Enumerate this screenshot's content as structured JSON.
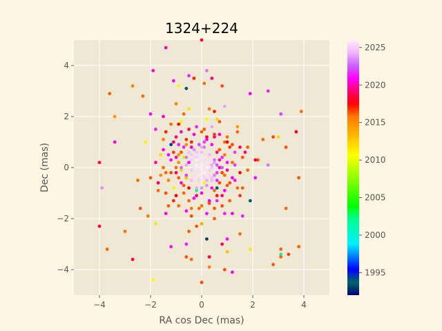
{
  "chart_data": {
    "type": "scatter",
    "title": "1324+224",
    "xlabel": "RA cos Dec (mas)",
    "ylabel": "Dec (mas)",
    "xlim": [
      -5,
      5
    ],
    "ylim": [
      -5,
      5
    ],
    "x_ticks": [
      -4,
      -2,
      0,
      2,
      4
    ],
    "y_ticks": [
      -4,
      -2,
      0,
      2,
      4
    ],
    "grid": true,
    "colorbar": {
      "label": "",
      "range": [
        1992,
        2026
      ],
      "ticks": [
        1995,
        2000,
        2005,
        2010,
        2015,
        2020,
        2025
      ],
      "colormap": "gist_ncar"
    },
    "colors": {
      "background": "#fdf6e3",
      "plot_area": "#eee8d5",
      "grid": "#ffffff"
    },
    "points": [
      [
        0.0,
        5.0,
        2018.5
      ],
      [
        -1.4,
        4.7,
        2020.0
      ],
      [
        -0.5,
        3.6,
        2021.5
      ],
      [
        0.2,
        3.8,
        2023.0
      ],
      [
        -2.7,
        3.2,
        2015.5
      ],
      [
        -2.3,
        2.8,
        2016.0
      ],
      [
        -3.6,
        2.9,
        2016.2
      ],
      [
        -1.9,
        3.8,
        2020.5
      ],
      [
        -0.3,
        3.5,
        2017.0
      ],
      [
        0.4,
        3.5,
        2019.5
      ],
      [
        0.8,
        3.2,
        2016.5
      ],
      [
        1.9,
        2.9,
        2020.8
      ],
      [
        2.6,
        3.0,
        2021.5
      ],
      [
        0.1,
        3.3,
        2016.0
      ],
      [
        -1.1,
        3.4,
        2021.0
      ],
      [
        -0.6,
        3.1,
        1993.5
      ],
      [
        -0.9,
        3.2,
        2011.0
      ],
      [
        -3.4,
        2.0,
        2014.5
      ],
      [
        -3.4,
        1.0,
        2020.5
      ],
      [
        -2.0,
        2.1,
        2021.0
      ],
      [
        -1.5,
        2.0,
        2020.3
      ],
      [
        -1.0,
        2.5,
        2015.3
      ],
      [
        -0.5,
        2.3,
        2011.5
      ],
      [
        0.5,
        2.2,
        2017.2
      ],
      [
        0.9,
        2.4,
        2024.0
      ],
      [
        3.9,
        2.2,
        2016.0
      ],
      [
        3.1,
        2.1,
        2022.0
      ],
      [
        -1.8,
        1.5,
        2021.3
      ],
      [
        -1.4,
        1.4,
        2017.0
      ],
      [
        -0.8,
        1.8,
        2011.0
      ],
      [
        0.2,
        1.9,
        2010.5
      ],
      [
        0.7,
        1.8,
        2016.3
      ],
      [
        1.4,
        1.6,
        2014.5
      ],
      [
        2.4,
        1.1,
        2016.0
      ],
      [
        2.8,
        1.2,
        2016.5
      ],
      [
        3.0,
        1.2,
        2012.0
      ],
      [
        3.7,
        1.4,
        2018.0
      ],
      [
        -1.1,
        1.0,
        2019.0
      ],
      [
        -0.6,
        0.9,
        2015.0
      ],
      [
        0.1,
        1.0,
        2022.0
      ],
      [
        0.5,
        1.2,
        2019.5
      ],
      [
        0.9,
        1.0,
        2016.0
      ],
      [
        1.5,
        0.8,
        2019.0
      ],
      [
        1.8,
        0.8,
        2016.2
      ],
      [
        3.3,
        0.8,
        2016.4
      ],
      [
        -2.5,
        -0.5,
        2016.0
      ],
      [
        -2.4,
        -1.6,
        2016.3
      ],
      [
        -2.1,
        -1.9,
        2015.8
      ],
      [
        -1.8,
        -2.2,
        2011.5
      ],
      [
        -3.0,
        -2.5,
        2016.0
      ],
      [
        -4.0,
        -2.3,
        2018.2
      ],
      [
        -3.7,
        -3.2,
        2016.1
      ],
      [
        -2.7,
        -3.6,
        2018.5
      ],
      [
        -1.9,
        -4.4,
        2011.0
      ],
      [
        -1.2,
        -3.1,
        2021.0
      ],
      [
        -0.6,
        -3.0,
        2021.3
      ],
      [
        -0.6,
        -3.5,
        2016.3
      ],
      [
        -0.4,
        -3.6,
        2016.0
      ],
      [
        0.0,
        -4.5,
        2016.5
      ],
      [
        0.3,
        -3.9,
        2015.2
      ],
      [
        0.9,
        -4.0,
        2016.4
      ],
      [
        1.2,
        -4.1,
        2021.0
      ],
      [
        1.0,
        -3.3,
        2013.0
      ],
      [
        0.8,
        -3.0,
        2019.0
      ],
      [
        0.2,
        -2.8,
        1993.0
      ],
      [
        0.3,
        -3.5,
        2018.8
      ],
      [
        1.9,
        -3.2,
        2011.5
      ],
      [
        2.8,
        -3.8,
        2016.3
      ],
      [
        3.1,
        -3.5,
        2016.0
      ],
      [
        3.1,
        -3.2,
        2016.2
      ],
      [
        3.4,
        -3.4,
        2016.6
      ],
      [
        3.8,
        -3.1,
        2016.1
      ],
      [
        3.1,
        -3.4,
        2001.5
      ],
      [
        3.3,
        -1.6,
        2016.0
      ],
      [
        1.9,
        -1.3,
        1994.0
      ],
      [
        1.5,
        -2.6,
        2016.0
      ],
      [
        1.6,
        -1.9,
        2021.3
      ],
      [
        -0.5,
        -2.5,
        2016.2
      ],
      [
        0.0,
        -2.2,
        2014.0
      ],
      [
        -4.0,
        0.2,
        2018.5
      ],
      [
        -3.9,
        -0.8,
        2023.5
      ],
      [
        -1.7,
        -0.9,
        2016.0
      ],
      [
        3.8,
        -0.4,
        2016.3
      ],
      [
        2.6,
        0.1,
        2023.0
      ],
      [
        2.1,
        0.3,
        2018.0
      ],
      [
        -1.4,
        -1.8,
        2020.5
      ],
      [
        1.0,
        -2.8,
        2021.0
      ],
      [
        -1.2,
        0.3,
        2021.0
      ],
      [
        -1.0,
        -0.2,
        2019.0
      ],
      [
        -0.9,
        0.5,
        2015.0
      ],
      [
        -0.8,
        -0.6,
        2020.5
      ],
      [
        -0.7,
        0.8,
        2021.5
      ],
      [
        -0.7,
        -1.0,
        2016.0
      ],
      [
        -0.6,
        0.1,
        2024.0
      ],
      [
        -0.6,
        -0.3,
        2022.0
      ],
      [
        -0.5,
        0.6,
        2024.5
      ],
      [
        -0.5,
        -0.8,
        2018.0
      ],
      [
        -0.4,
        0.3,
        2025.0
      ],
      [
        -0.4,
        -0.5,
        2024.5
      ],
      [
        -0.4,
        1.0,
        2017.0
      ],
      [
        -0.3,
        0.0,
        2025.5
      ],
      [
        -0.3,
        -1.2,
        2021.0
      ],
      [
        -0.3,
        0.7,
        2023.5
      ],
      [
        -0.2,
        0.4,
        2025.0
      ],
      [
        -0.2,
        -0.2,
        2025.5
      ],
      [
        -0.2,
        -0.8,
        2024.0
      ],
      [
        -0.1,
        0.1,
        2025.5
      ],
      [
        -0.1,
        0.9,
        2022.0
      ],
      [
        -0.1,
        -0.5,
        2025.0
      ],
      [
        0.0,
        0.3,
        2025.5
      ],
      [
        0.0,
        -0.1,
        2025.8
      ],
      [
        0.0,
        0.6,
        2024.5
      ],
      [
        0.0,
        -1.0,
        2020.5
      ],
      [
        0.1,
        0.0,
        2025.5
      ],
      [
        0.1,
        -0.4,
        2025.0
      ],
      [
        0.1,
        0.8,
        2023.0
      ],
      [
        0.2,
        0.2,
        2025.5
      ],
      [
        0.2,
        -0.7,
        2023.5
      ],
      [
        0.2,
        1.2,
        2018.5
      ],
      [
        0.3,
        -0.1,
        2025.0
      ],
      [
        0.3,
        0.5,
        2024.5
      ],
      [
        0.3,
        -1.4,
        2016.5
      ],
      [
        0.4,
        0.1,
        2024.0
      ],
      [
        0.4,
        -0.4,
        2024.5
      ],
      [
        0.4,
        0.9,
        2021.0
      ],
      [
        0.5,
        -0.9,
        2016.0
      ],
      [
        0.5,
        0.3,
        2023.0
      ],
      [
        0.6,
        -0.2,
        2022.0
      ],
      [
        0.6,
        0.6,
        2019.5
      ],
      [
        0.6,
        -1.3,
        2021.5
      ],
      [
        0.7,
        0.0,
        2020.0
      ],
      [
        0.7,
        -0.6,
        2016.5
      ],
      [
        0.8,
        0.4,
        2021.5
      ],
      [
        0.8,
        -1.1,
        2019.0
      ],
      [
        0.9,
        -0.3,
        2016.0
      ],
      [
        1.0,
        0.2,
        2021.0
      ],
      [
        1.0,
        -0.7,
        2016.3
      ],
      [
        1.1,
        0.8,
        2016.8
      ],
      [
        1.2,
        -0.4,
        2020.5
      ],
      [
        1.3,
        0.1,
        2022.0
      ],
      [
        -1.3,
        -0.5,
        2015.5
      ],
      [
        -1.1,
        -1.3,
        2017.0
      ],
      [
        -1.0,
        1.2,
        2019.5
      ],
      [
        -0.9,
        -1.5,
        2016.0
      ],
      [
        -0.8,
        1.4,
        2020.5
      ],
      [
        -0.6,
        -1.7,
        2021.0
      ],
      [
        -0.5,
        1.5,
        2019.0
      ],
      [
        -0.4,
        -1.9,
        2016.5
      ],
      [
        -0.2,
        1.6,
        2021.5
      ],
      [
        -0.1,
        -1.6,
        2016.0
      ],
      [
        0.1,
        1.5,
        2016.2
      ],
      [
        0.2,
        -1.8,
        2021.0
      ],
      [
        0.4,
        1.6,
        2024.0
      ],
      [
        0.5,
        -1.6,
        2016.3
      ],
      [
        0.7,
        1.3,
        2020.0
      ],
      [
        0.8,
        -1.5,
        2016.5
      ],
      [
        1.0,
        1.2,
        2016.0
      ],
      [
        1.1,
        -1.3,
        2016.2
      ],
      [
        1.3,
        0.6,
        2022.0
      ],
      [
        1.4,
        -0.8,
        2016.1
      ],
      [
        1.5,
        -0.2,
        2017.5
      ],
      [
        1.6,
        0.4,
        2016.3
      ],
      [
        -1.5,
        0.0,
        2016.0
      ],
      [
        -1.5,
        0.7,
        2020.5
      ],
      [
        -1.6,
        -0.3,
        2015.0
      ],
      [
        -1.4,
        -1.0,
        2016.4
      ],
      [
        -1.2,
        0.9,
        1994.5
      ],
      [
        -1.1,
        -0.8,
        2011.0
      ],
      [
        -0.9,
        0.2,
        2015.0
      ],
      [
        -0.8,
        -0.1,
        2012.5
      ],
      [
        -0.7,
        0.4,
        2009.0
      ],
      [
        -0.6,
        -0.4,
        2013.0
      ],
      [
        -0.5,
        0.2,
        2020.8
      ],
      [
        -0.4,
        -0.1,
        2024.8
      ],
      [
        -0.3,
        0.4,
        2025.2
      ],
      [
        -0.3,
        -0.4,
        2025.4
      ],
      [
        -0.2,
        0.1,
        2025.9
      ],
      [
        -0.1,
        -0.3,
        2025.7
      ],
      [
        0.0,
        0.1,
        2025.9
      ],
      [
        0.1,
        0.4,
        2025.6
      ],
      [
        0.1,
        -0.2,
        2025.8
      ],
      [
        0.2,
        0.0,
        2025.9
      ],
      [
        0.3,
        0.3,
        2025.3
      ],
      [
        0.3,
        -0.3,
        2025.1
      ],
      [
        0.4,
        0.0,
        2024.6
      ],
      [
        0.5,
        0.2,
        2023.8
      ],
      [
        0.5,
        -0.3,
        2023.2
      ],
      [
        0.6,
        0.1,
        2022.5
      ],
      [
        0.6,
        -0.5,
        2021.5
      ],
      [
        0.2,
        -0.5,
        2024.2
      ],
      [
        -0.2,
        0.6,
        2024.6
      ],
      [
        -0.6,
        0.4,
        2023.0
      ],
      [
        0.7,
        0.3,
        2020.3
      ],
      [
        -0.1,
        0.5,
        2025.4
      ],
      [
        0.0,
        -0.4,
        2025.6
      ],
      [
        -0.4,
        0.8,
        2020.2
      ],
      [
        0.4,
        -0.8,
        2021.0
      ],
      [
        -0.8,
        0.6,
        2016.4
      ],
      [
        0.8,
        -0.2,
        2016.6
      ],
      [
        -0.9,
        -0.4,
        2016.2
      ],
      [
        0.9,
        0.5,
        2015.8
      ],
      [
        -1.0,
        0.4,
        2020.0
      ],
      [
        1.0,
        -0.1,
        2019.8
      ],
      [
        -0.2,
        -1.1,
        2019.2
      ],
      [
        0.2,
        1.1,
        2020.4
      ],
      [
        -0.6,
        1.1,
        2016.9
      ],
      [
        0.6,
        -1.1,
        2017.2
      ],
      [
        -1.2,
        -0.2,
        2016.5
      ],
      [
        1.2,
        0.2,
        2016.0
      ],
      [
        -0.5,
        -1.3,
        2016.1
      ],
      [
        0.5,
        1.3,
        2016.7
      ],
      [
        -0.7,
        -0.7,
        2016.3
      ],
      [
        0.7,
        0.7,
        2016.2
      ],
      [
        -1.3,
        0.5,
        2020.9
      ],
      [
        1.3,
        -0.5,
        2021.2
      ],
      [
        -0.3,
        1.3,
        2020.6
      ],
      [
        0.3,
        -1.3,
        2020.7
      ],
      [
        0.0,
        0.8,
        2024.0
      ],
      [
        0.0,
        -0.8,
        2023.6
      ],
      [
        -0.8,
        0.0,
        2022.8
      ],
      [
        0.8,
        0.0,
        2022.4
      ],
      [
        -0.4,
        0.5,
        2024.9
      ],
      [
        0.4,
        -0.5,
        2024.3
      ],
      [
        -0.2,
        0.3,
        2025.7
      ],
      [
        0.2,
        -0.3,
        2025.5
      ],
      [
        -1.5,
        1.1,
        2015.6
      ],
      [
        1.5,
        -1.1,
        2016.8
      ],
      [
        -1.7,
        -0.6,
        2018.8
      ],
      [
        1.7,
        0.6,
        2019.6
      ],
      [
        -1.0,
        -1.1,
        2017.5
      ],
      [
        1.0,
        1.0,
        2017.8
      ],
      [
        -1.3,
        -1.5,
        2016.2
      ],
      [
        1.4,
        1.4,
        2016.1
      ],
      [
        -0.4,
        -1.6,
        2015.9
      ],
      [
        0.9,
        -1.8,
        2021.4
      ],
      [
        -0.9,
        1.7,
        2017.4
      ],
      [
        0.6,
        1.9,
        2012.0
      ],
      [
        -1.2,
        1.7,
        2016.0
      ],
      [
        1.2,
        -1.8,
        2020.6
      ],
      [
        0.3,
        2.3,
        2015.7
      ],
      [
        -0.2,
        -2.3,
        2016.4
      ],
      [
        0.5,
        -2.0,
        2016.2
      ],
      [
        -0.7,
        2.1,
        2016.0
      ],
      [
        0.6,
        -0.8,
        1994.0
      ],
      [
        -0.2,
        -0.9,
        2002.0
      ],
      [
        0.1,
        -0.6,
        2011.0
      ],
      [
        -1.0,
        0.0,
        2016.0
      ],
      [
        -1.8,
        0.2,
        2020.0
      ],
      [
        1.8,
        -0.1,
        2016.0
      ],
      [
        2.1,
        -0.4,
        2021.0
      ],
      [
        -2.0,
        -0.4,
        2016.3
      ],
      [
        1.6,
        -0.8,
        2016.2
      ],
      [
        -1.6,
        0.5,
        2012.0
      ],
      [
        2.2,
        0.3,
        2016.5
      ],
      [
        -2.2,
        1.0,
        2011.2
      ],
      [
        1.2,
        0.9,
        2016.5
      ],
      [
        -1.4,
        -0.2,
        2016.1
      ],
      [
        0.0,
        1.4,
        2016.3
      ],
      [
        0.0,
        -1.5,
        2016.0
      ],
      [
        -0.9,
        0.9,
        2021.3
      ],
      [
        0.9,
        -0.9,
        2020.8
      ],
      [
        -1.1,
        0.6,
        2016.7
      ],
      [
        1.1,
        -0.6,
        2016.4
      ]
    ]
  }
}
